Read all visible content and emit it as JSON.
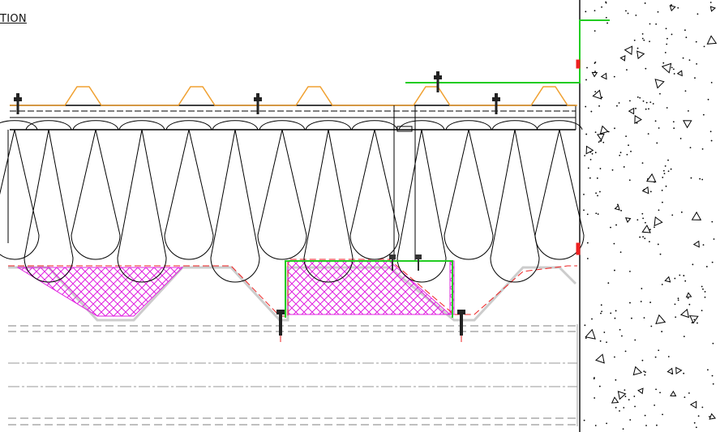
{
  "drawing": {
    "title": "TION"
  },
  "colors": {
    "background": "#ffffff",
    "line": "#000000",
    "profiled_sheet": "#f0a030",
    "flashing": "#22cc22",
    "fire_barrier": "#e020e0",
    "vapour_line": "#ee2020",
    "hidden_line": "#999999",
    "concrete_dots": "#000000",
    "fixing_red": "#ee2020"
  },
  "icons": {
    "fastener": "screw-fastener-icon",
    "aggregate": "aggregate-triangle-icon"
  }
}
